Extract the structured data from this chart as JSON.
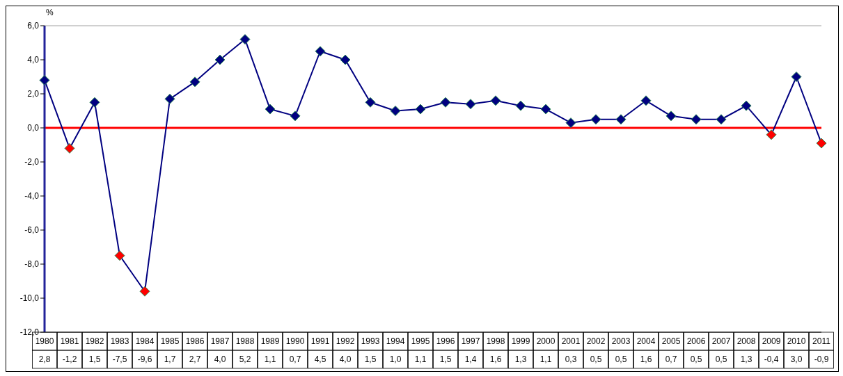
{
  "chart_data": {
    "type": "line",
    "ylabel": "%",
    "categories": [
      "1980",
      "1981",
      "1982",
      "1983",
      "1984",
      "1985",
      "1986",
      "1987",
      "1988",
      "1989",
      "1990",
      "1991",
      "1992",
      "1993",
      "1994",
      "1995",
      "1996",
      "1997",
      "1998",
      "1999",
      "2000",
      "2001",
      "2002",
      "2003",
      "2004",
      "2005",
      "2006",
      "2007",
      "2008",
      "2009",
      "2010",
      "2011"
    ],
    "series": [
      {
        "color": "#000080",
        "values": [
          2.8,
          -1.2,
          1.5,
          -7.5,
          -9.6,
          1.7,
          2.7,
          4.0,
          5.2,
          1.1,
          0.7,
          4.5,
          4.0,
          1.5,
          1.0,
          1.1,
          1.5,
          1.4,
          1.6,
          1.3,
          1.1,
          0.3,
          0.5,
          0.5,
          1.6,
          0.7,
          0.5,
          0.5,
          1.3,
          -0.4,
          3.0,
          -0.9
        ],
        "colors": [
          "#000080",
          "#ff0000",
          "#000080",
          "#ff0000",
          "#ff0000",
          "#000080",
          "#000080",
          "#000080",
          "#000080",
          "#000080",
          "#000080",
          "#000080",
          "#000080",
          "#000080",
          "#000080",
          "#000080",
          "#000080",
          "#000080",
          "#000080",
          "#000080",
          "#000080",
          "#000080",
          "#000080",
          "#000080",
          "#000080",
          "#000080",
          "#000080",
          "#000080",
          "#000080",
          "#ff0000",
          "#000080",
          "#ff0000"
        ],
        "value_labels": [
          "2,8",
          "-1,2",
          "1,5",
          "-7,5",
          "-9,6",
          "1,7",
          "2,7",
          "4,0",
          "5,2",
          "1,1",
          "0,7",
          "4,5",
          "4,0",
          "1,5",
          "1,0",
          "1,1",
          "1,5",
          "1,4",
          "1,6",
          "1,3",
          "1,1",
          "0,3",
          "0,5",
          "0,5",
          "1,6",
          "0,7",
          "0,5",
          "0,5",
          "1,3",
          "-0,4",
          "3,0",
          "-0,9"
        ]
      }
    ],
    "ylim": [
      -12,
      6
    ],
    "yticks": [
      {
        "value": -12,
        "label": "-12,0"
      },
      {
        "value": -10,
        "label": "-10,0"
      },
      {
        "value": -8,
        "label": "-8,0"
      },
      {
        "value": -6,
        "label": "-6,0"
      },
      {
        "value": -4,
        "label": "-4,0"
      },
      {
        "value": -2,
        "label": "-2,0"
      },
      {
        "value": 0,
        "label": "0,0"
      },
      {
        "value": 2,
        "label": "2,0"
      },
      {
        "value": 4,
        "label": "4,0"
      },
      {
        "value": 6,
        "label": "6,0"
      }
    ],
    "ref_lines": [
      {
        "axis": "y",
        "value": 0,
        "color": "#ff0000"
      }
    ],
    "marker": "diamond",
    "line_style": "solid",
    "grid": false
  }
}
